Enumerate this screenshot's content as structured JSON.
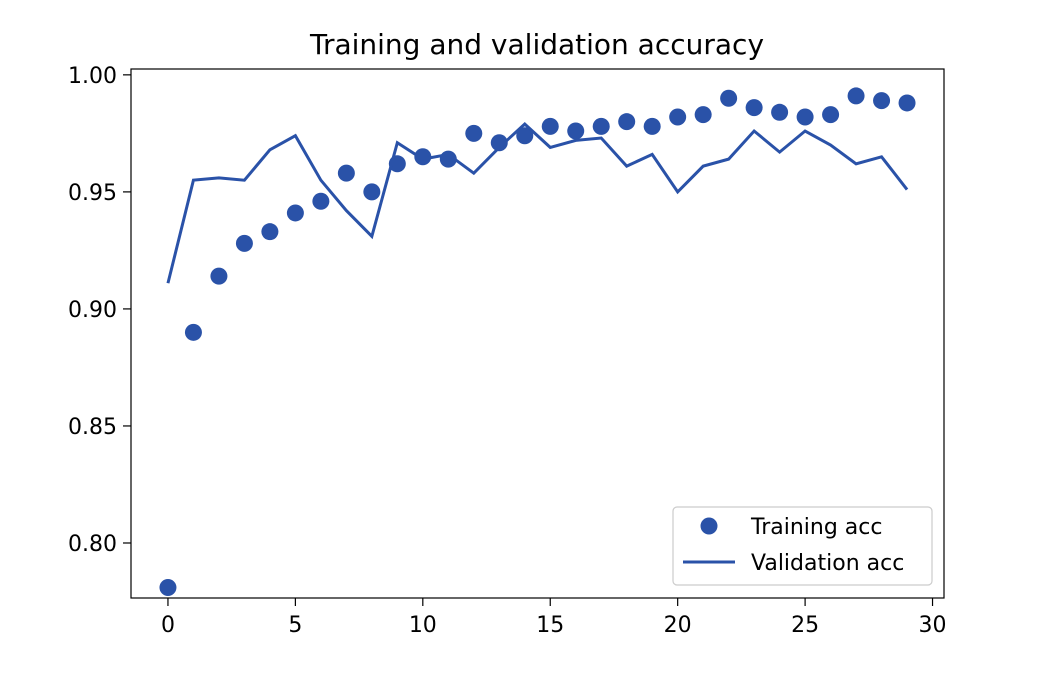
{
  "chart_data": {
    "type": "scatter",
    "title": "Training and validation accuracy",
    "xlabel": "",
    "ylabel": "",
    "xlim": [
      -1.45,
      30.45
    ],
    "ylim": [
      0.7765,
      1.0025
    ],
    "xticks": [
      0,
      5,
      10,
      15,
      20,
      25,
      30
    ],
    "xtick_labels": [
      "0",
      "5",
      "10",
      "15",
      "20",
      "25",
      "30"
    ],
    "yticks": [
      0.8,
      0.85,
      0.9,
      0.95,
      1.0
    ],
    "ytick_labels": [
      "0.80",
      "0.85",
      "0.90",
      "0.95",
      "1.00"
    ],
    "grid": false,
    "legend_position": "bottom-right",
    "series": [
      {
        "name": "Training acc",
        "style": "markers",
        "color": "#2a52a8",
        "x": [
          0,
          1,
          2,
          3,
          4,
          5,
          6,
          7,
          8,
          9,
          10,
          11,
          12,
          13,
          14,
          15,
          16,
          17,
          18,
          19,
          20,
          21,
          22,
          23,
          24,
          25,
          26,
          27,
          28,
          29
        ],
        "values": [
          0.781,
          0.89,
          0.914,
          0.928,
          0.933,
          0.941,
          0.946,
          0.958,
          0.95,
          0.962,
          0.965,
          0.964,
          0.975,
          0.971,
          0.974,
          0.978,
          0.976,
          0.978,
          0.98,
          0.978,
          0.982,
          0.983,
          0.99,
          0.986,
          0.984,
          0.982,
          0.983,
          0.991,
          0.989,
          0.988
        ]
      },
      {
        "name": "Validation acc",
        "style": "line",
        "color": "#2a52a8",
        "x": [
          0,
          1,
          2,
          3,
          4,
          5,
          6,
          7,
          8,
          9,
          10,
          11,
          12,
          13,
          14,
          15,
          16,
          17,
          18,
          19,
          20,
          21,
          22,
          23,
          24,
          25,
          26,
          27,
          28,
          29
        ],
        "values": [
          0.911,
          0.955,
          0.956,
          0.955,
          0.968,
          0.974,
          0.955,
          0.942,
          0.931,
          0.971,
          0.964,
          0.966,
          0.958,
          0.969,
          0.979,
          0.969,
          0.972,
          0.973,
          0.961,
          0.966,
          0.95,
          0.961,
          0.964,
          0.976,
          0.967,
          0.976,
          0.97,
          0.962,
          0.965,
          0.951
        ]
      }
    ]
  }
}
